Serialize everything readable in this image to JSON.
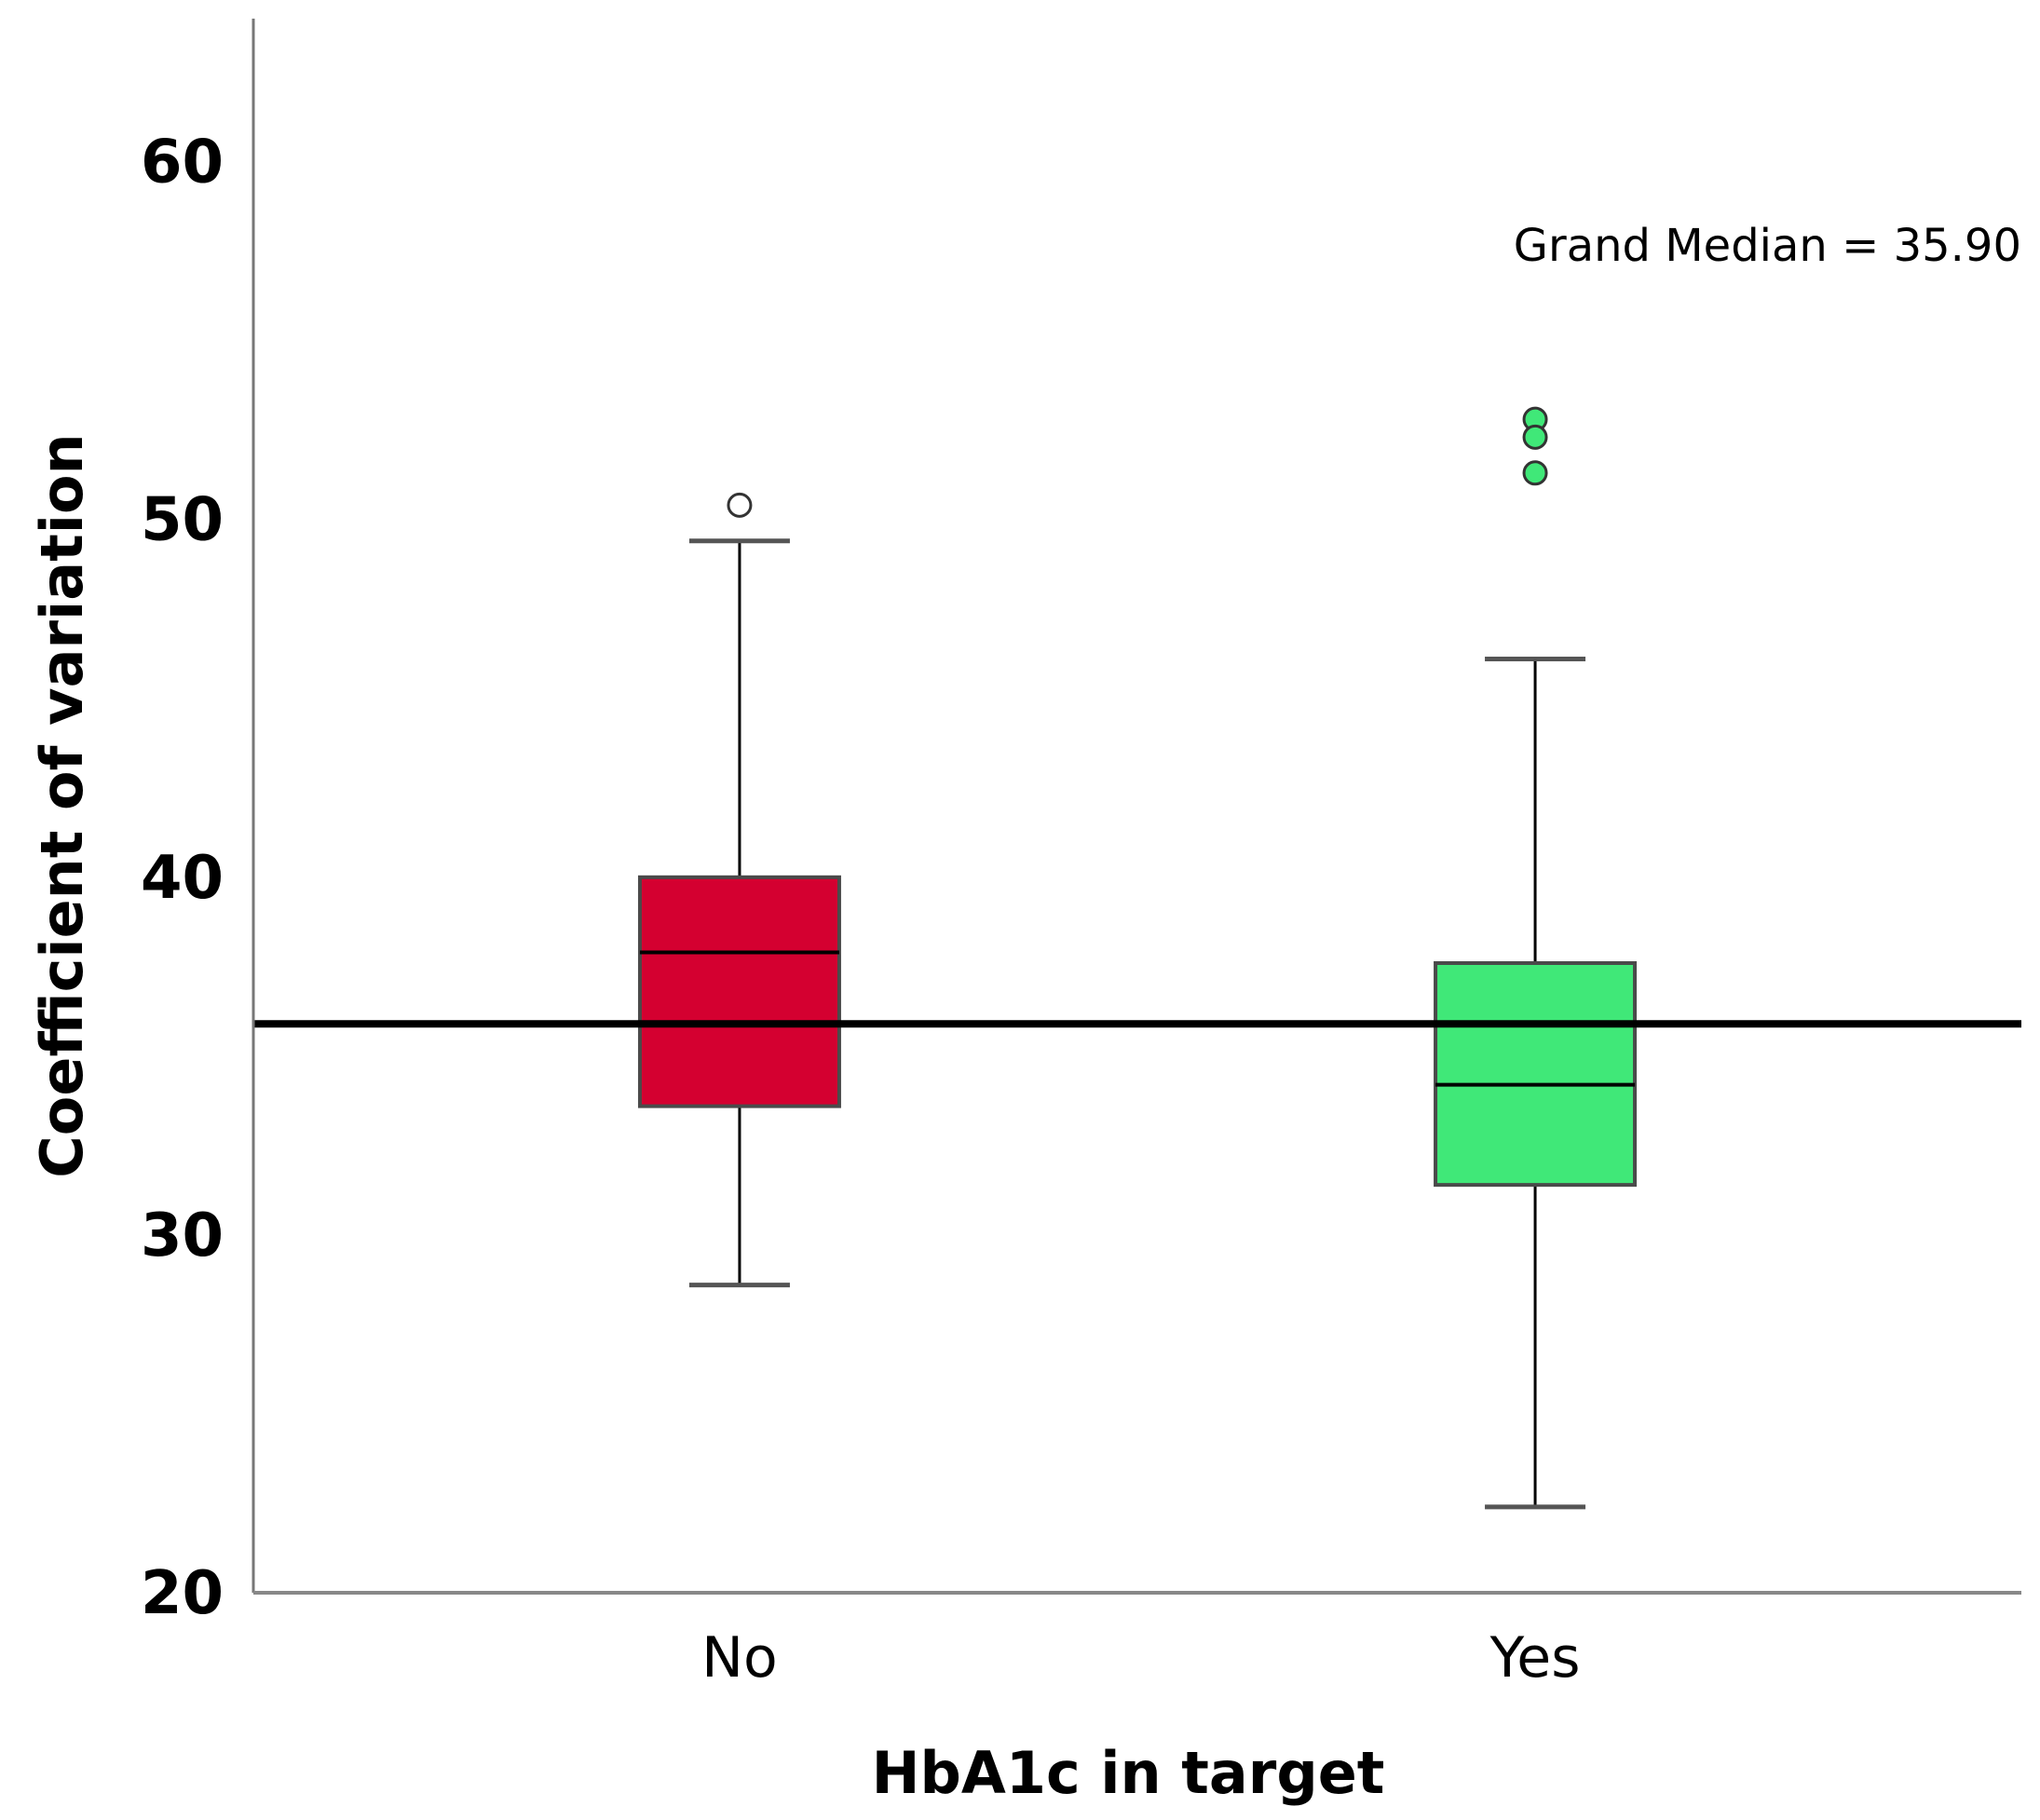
{
  "chart_data": {
    "type": "boxplot",
    "xlabel": "HbA1c in target",
    "ylabel": "Coefficient of variation",
    "ylim": [
      20,
      64
    ],
    "yticks": [
      20,
      30,
      40,
      50,
      60
    ],
    "categories": [
      "No",
      "Yes"
    ],
    "boxes": [
      {
        "category": "No",
        "whisker_low": 28.6,
        "q1": 33.6,
        "median": 37.9,
        "q3": 40.0,
        "whisker_high": 49.4,
        "outliers": [
          50.4
        ],
        "color": "#d40030",
        "outlier_style": "hollow"
      },
      {
        "category": "Yes",
        "whisker_low": 22.4,
        "q1": 31.4,
        "median": 34.2,
        "q3": 37.6,
        "whisker_high": 46.1,
        "outliers": [
          52.8,
          52.3,
          51.3
        ],
        "color": "#40e878",
        "outlier_style": "filled"
      }
    ],
    "reference_line": {
      "value": 35.9,
      "label": "Grand Median = 35.90"
    },
    "grid": false,
    "legend": "none"
  }
}
